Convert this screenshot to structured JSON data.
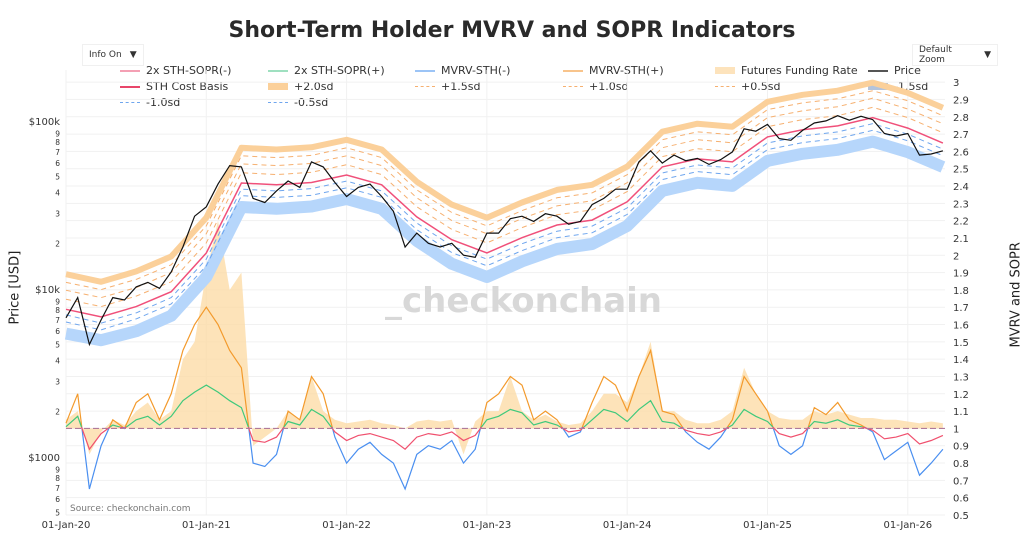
{
  "title": "Short-Term Holder MVRV and SOPR Indicators",
  "controls": {
    "info_label": "Info On",
    "zoom_label": "Default Zoom",
    "dropdown_glyph": "▼"
  },
  "source": "Source:  checkonchain.com",
  "watermark": "_checkonchain",
  "colors": {
    "price": "#111111",
    "cost_basis": "#f0507a",
    "sd_plus_2": "#fbd09a",
    "sd_plus_dash": "#f6b070",
    "sd_minus_dash": "#6fa6ee",
    "sd_minus_1_5": "#b6d6fb",
    "mvrv_pos": "#f39a2c",
    "mvrv_neg": "#4a8ff0",
    "sopr_pos": "#3fc97c",
    "sopr_neg": "#f0506e",
    "funding": "#fcd9a2"
  },
  "legend": [
    {
      "label": "2x STH-SOPR(-)",
      "color": "#f4a0b4",
      "style": "line"
    },
    {
      "label": "2x STH-SOPR(+)",
      "color": "#9fe0c0",
      "style": "line"
    },
    {
      "label": "MVRV-STH(-)",
      "color": "#9cc4f6",
      "style": "line"
    },
    {
      "label": "MVRV-STH(+)",
      "color": "#f8c48c",
      "style": "line"
    },
    {
      "label": "Futures Funding Rate",
      "color": "#fde3bc",
      "style": "thick"
    },
    {
      "label": "Price",
      "color": "#555555",
      "style": "line"
    },
    {
      "label": "STH Cost Basis",
      "color": "#e8466a",
      "style": "line"
    },
    {
      "label": "+2.0sd",
      "color": "#fbd09a",
      "style": "thick"
    },
    {
      "label": "+1.5sd",
      "color": "#f6b070",
      "style": "dash"
    },
    {
      "label": "+1.0sd",
      "color": "#f6b070",
      "style": "dash"
    },
    {
      "label": "+0.5sd",
      "color": "#f6b070",
      "style": "dash"
    },
    {
      "label": "-1.5sd",
      "color": "#b4c4dc",
      "style": "thick"
    },
    {
      "label": "-1.0sd",
      "color": "#6fa6ee",
      "style": "dash"
    },
    {
      "label": "-0.5sd",
      "color": "#6fa6ee",
      "style": "dash"
    }
  ],
  "axes": {
    "left_title": "Price [USD]",
    "right_title": "MVRV and SOPR"
  },
  "chart_data": {
    "type": "line",
    "title": "Short-Term Holder MVRV and SOPR Indicators",
    "x_ticks": [
      "01-Jan-20",
      "01-Jan-21",
      "01-Jan-22",
      "01-Jan-23",
      "01-Jan-24",
      "01-Jan-25",
      "01-Jan-26"
    ],
    "left_axis": {
      "title": "Price [USD]",
      "scale": "log",
      "range": [
        483,
        215000
      ],
      "major_ticks": [
        {
          "value": 1000,
          "label": "$1000"
        },
        {
          "value": 10000,
          "label": "$10k"
        },
        {
          "value": 100000,
          "label": "$100k"
        }
      ],
      "minor_labels": [
        "2",
        "3",
        "4",
        "5",
        "6",
        "7",
        "8",
        "9"
      ]
    },
    "right_axis": {
      "title": "MVRV and SOPR",
      "scale": "linear",
      "range": [
        0.5,
        3.07
      ],
      "ticks": [
        "0.5",
        "0.6",
        "0.7",
        "0.8",
        "0.9",
        "1",
        "1.1",
        "1.2",
        "1.3",
        "1.4",
        "1.5",
        "1.6",
        "1.7",
        "1.8",
        "1.9",
        "2",
        "2.1",
        "2.2",
        "2.3",
        "2.4",
        "2.5",
        "2.6",
        "2.7",
        "2.8",
        "2.9",
        "3"
      ]
    },
    "grid": true,
    "legend_position": "top",
    "monthly_start": "2020-01",
    "price": [
      7200,
      9500,
      5000,
      7000,
      9500,
      9200,
      11000,
      11700,
      10800,
      13500,
      19000,
      29000,
      33000,
      45000,
      58000,
      57000,
      37000,
      35000,
      41000,
      47000,
      43000,
      61000,
      57000,
      46000,
      38000,
      43000,
      45000,
      38000,
      31000,
      19000,
      23000,
      20000,
      19000,
      20000,
      17000,
      16500,
      23000,
      23000,
      28000,
      29000,
      27000,
      30000,
      29000,
      26000,
      27000,
      34000,
      37000,
      42000,
      42000,
      61000,
      71000,
      60000,
      67000,
      62000,
      64000,
      59000,
      63000,
      70000,
      96000,
      93000,
      102000,
      84000,
      82000,
      94000,
      104000,
      107000,
      115000,
      108000,
      114000,
      109000,
      90000,
      87000,
      90000,
      67000,
      68000,
      71000
    ],
    "quarterly_start": "2020-01",
    "sth_cost_basis": [
      8100,
      7300,
      8400,
      10300,
      17500,
      45700,
      44600,
      46000,
      51000,
      44600,
      28700,
      21000,
      17500,
      21600,
      25700,
      27500,
      35300,
      57000,
      63600,
      61000,
      86000,
      94700,
      100000,
      112000,
      97000,
      79000
    ],
    "sd_bands": {
      "+2.0sd": [
        13100,
        11800,
        13600,
        16700,
        28400,
        74000,
        72300,
        74500,
        82600,
        72300,
        46500,
        34000,
        28400,
        35000,
        41600,
        44600,
        57200,
        92300,
        103000,
        98800,
        139000,
        153000,
        162000,
        181000,
        157000,
        128000
      ],
      "+1.5sd": [
        11700,
        10600,
        12200,
        14900,
        25400,
        66300,
        64700,
        66700,
        74000,
        64700,
        41600,
        30500,
        25400,
        31300,
        37300,
        39900,
        51200,
        82700,
        92200,
        88500,
        125000,
        137000,
        145000,
        162000,
        141000,
        115000
      ],
      "+1.0sd": [
        10500,
        9500,
        10900,
        13400,
        22800,
        59400,
        58000,
        59800,
        66300,
        58000,
        37300,
        27300,
        22800,
        28100,
        33400,
        35800,
        45900,
        74100,
        82700,
        79300,
        112000,
        123000,
        130000,
        146000,
        126000,
        103000
      ],
      "+0.5sd": [
        9300,
        8400,
        9700,
        11800,
        20100,
        52600,
        51300,
        52900,
        58700,
        51300,
        33000,
        24200,
        20100,
        24800,
        29600,
        31600,
        40600,
        65600,
        73100,
        70200,
        98900,
        109000,
        115000,
        129000,
        112000,
        90900
      ],
      "-0.5sd": [
        7500,
        6700,
        7700,
        9500,
        16100,
        42000,
        41000,
        42300,
        46900,
        41000,
        26400,
        19300,
        16100,
        19900,
        23600,
        25300,
        32500,
        52400,
        58500,
        56100,
        79100,
        87100,
        92000,
        103000,
        89200,
        72700
      ],
      "-1.0sd": [
        6800,
        6100,
        7100,
        8700,
        14700,
        38400,
        37500,
        38600,
        42800,
        37500,
        24100,
        17600,
        14700,
        18100,
        21600,
        23100,
        29700,
        47900,
        53400,
        51200,
        72200,
        79500,
        84000,
        94100,
        81500,
        66400
      ],
      "-1.5sd": [
        5800,
        5300,
        6000,
        7400,
        12600,
        32900,
        32100,
        33100,
        36700,
        32100,
        20700,
        15100,
        12600,
        15600,
        18500,
        19800,
        25400,
        41000,
        45800,
        43900,
        61900,
        68200,
        72000,
        80600,
        69800,
        56900
      ]
    },
    "mvrv_sth": [
      1.03,
      1.2,
      0.65,
      0.9,
      1.05,
      1.0,
      1.15,
      1.2,
      1.05,
      1.2,
      1.45,
      1.6,
      1.7,
      1.6,
      1.45,
      1.35,
      0.8,
      0.78,
      0.85,
      1.1,
      1.05,
      1.3,
      1.2,
      0.95,
      0.8,
      0.88,
      0.92,
      0.85,
      0.8,
      0.65,
      0.85,
      0.9,
      0.88,
      0.93,
      0.8,
      0.88,
      1.15,
      1.2,
      1.3,
      1.25,
      1.05,
      1.1,
      1.05,
      0.95,
      0.98,
      1.15,
      1.3,
      1.25,
      1.1,
      1.3,
      1.45,
      1.1,
      1.08,
      0.98,
      0.92,
      0.88,
      0.95,
      1.05,
      1.3,
      1.2,
      1.1,
      0.9,
      0.85,
      0.9,
      1.12,
      1.08,
      1.15,
      1.05,
      1.02,
      0.98,
      0.82,
      0.87,
      0.92,
      0.73,
      0.8,
      0.88
    ],
    "sopr_2x": [
      1.01,
      1.07,
      0.88,
      0.97,
      1.02,
      1.0,
      1.05,
      1.07,
      1.02,
      1.07,
      1.16,
      1.21,
      1.25,
      1.21,
      1.16,
      1.12,
      0.93,
      0.92,
      0.95,
      1.04,
      1.02,
      1.11,
      1.07,
      0.98,
      0.93,
      0.96,
      0.97,
      0.95,
      0.93,
      0.88,
      0.95,
      0.97,
      0.96,
      0.98,
      0.93,
      0.96,
      1.05,
      1.07,
      1.11,
      1.09,
      1.02,
      1.04,
      1.02,
      0.98,
      0.99,
      1.05,
      1.11,
      1.09,
      1.04,
      1.11,
      1.16,
      1.04,
      1.03,
      0.99,
      0.97,
      0.96,
      0.98,
      1.02,
      1.11,
      1.07,
      1.04,
      0.97,
      0.95,
      0.97,
      1.04,
      1.03,
      1.05,
      1.02,
      1.01,
      0.99,
      0.94,
      0.95,
      0.97,
      0.91,
      0.93,
      0.96
    ],
    "futures_funding_rate": [
      1.05,
      1.1,
      0.85,
      0.98,
      1.05,
      1.02,
      1.1,
      1.15,
      1.05,
      1.1,
      1.4,
      1.5,
      1.9,
      2.2,
      1.8,
      1.9,
      0.9,
      0.95,
      1.0,
      1.1,
      1.05,
      1.3,
      1.1,
      1.05,
      1.03,
      1.04,
      1.05,
      1.03,
      1.02,
      1.0,
      1.04,
      1.05,
      1.04,
      1.05,
      0.85,
      1.04,
      1.1,
      1.1,
      1.3,
      1.1,
      1.05,
      1.08,
      1.04,
      1.02,
      1.03,
      1.1,
      1.2,
      1.2,
      1.15,
      1.3,
      1.5,
      1.1,
      1.1,
      1.05,
      1.03,
      1.03,
      1.05,
      1.1,
      1.35,
      1.2,
      1.1,
      1.06,
      1.05,
      1.05,
      1.1,
      1.08,
      1.1,
      1.08,
      1.06,
      1.06,
      1.05,
      1.05,
      1.04,
      1.03,
      1.04,
      1.03
    ]
  }
}
